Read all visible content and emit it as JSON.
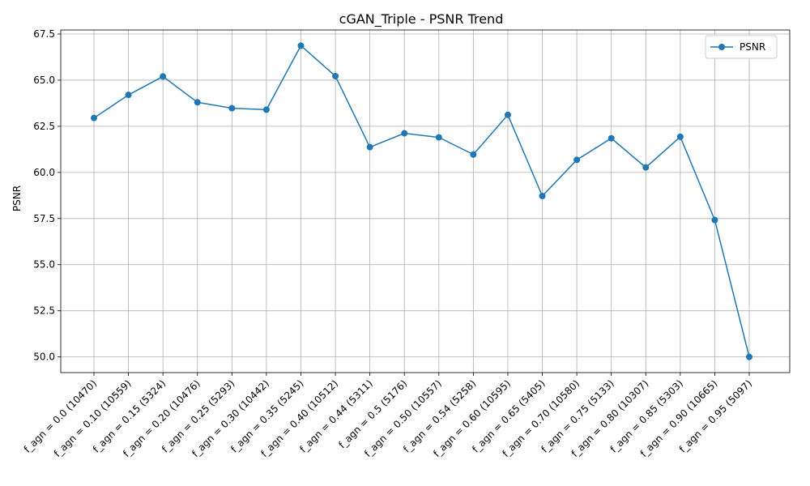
{
  "chart_data": {
    "type": "line",
    "title": "cGAN_Triple - PSNR Trend",
    "xlabel": "",
    "ylabel": "PSNR",
    "categories": [
      "f_agn = 0.0 (10470)",
      "f_agn = 0.10 (10559)",
      "f_agn = 0.15 (5324)",
      "f_agn = 0.20 (10476)",
      "f_agn = 0.25 (5293)",
      "f_agn = 0.30 (10442)",
      "f_agn = 0.35 (5245)",
      "f_agn = 0.40 (10512)",
      "f_agn = 0.44 (5311)",
      "f_agn = 0.5 (5176)",
      "f_agn = 0.50 (10557)",
      "f_agn = 0.54 (5258)",
      "f_agn = 0.60 (10595)",
      "f_agn = 0.65 (5405)",
      "f_agn = 0.70 (10580)",
      "f_agn = 0.75 (5133)",
      "f_agn = 0.80 (10307)",
      "f_agn = 0.85 (5303)",
      "f_agn = 0.90 (10665)",
      "f_agn = 0.95 (5097)"
    ],
    "series": [
      {
        "name": "PSNR",
        "color": "#1f77b4",
        "values": [
          62.95,
          64.2,
          65.2,
          63.8,
          63.48,
          63.4,
          66.87,
          65.22,
          61.37,
          62.12,
          61.9,
          60.97,
          63.12,
          58.72,
          60.68,
          61.85,
          60.27,
          61.93,
          57.42,
          50.0
        ]
      }
    ],
    "ylim": [
      49.15,
      67.72
    ],
    "yticks": [
      "50.0",
      "52.5",
      "55.0",
      "57.5",
      "60.0",
      "62.5",
      "65.0",
      "67.5"
    ],
    "grid": true,
    "legend_position": "top-right"
  }
}
